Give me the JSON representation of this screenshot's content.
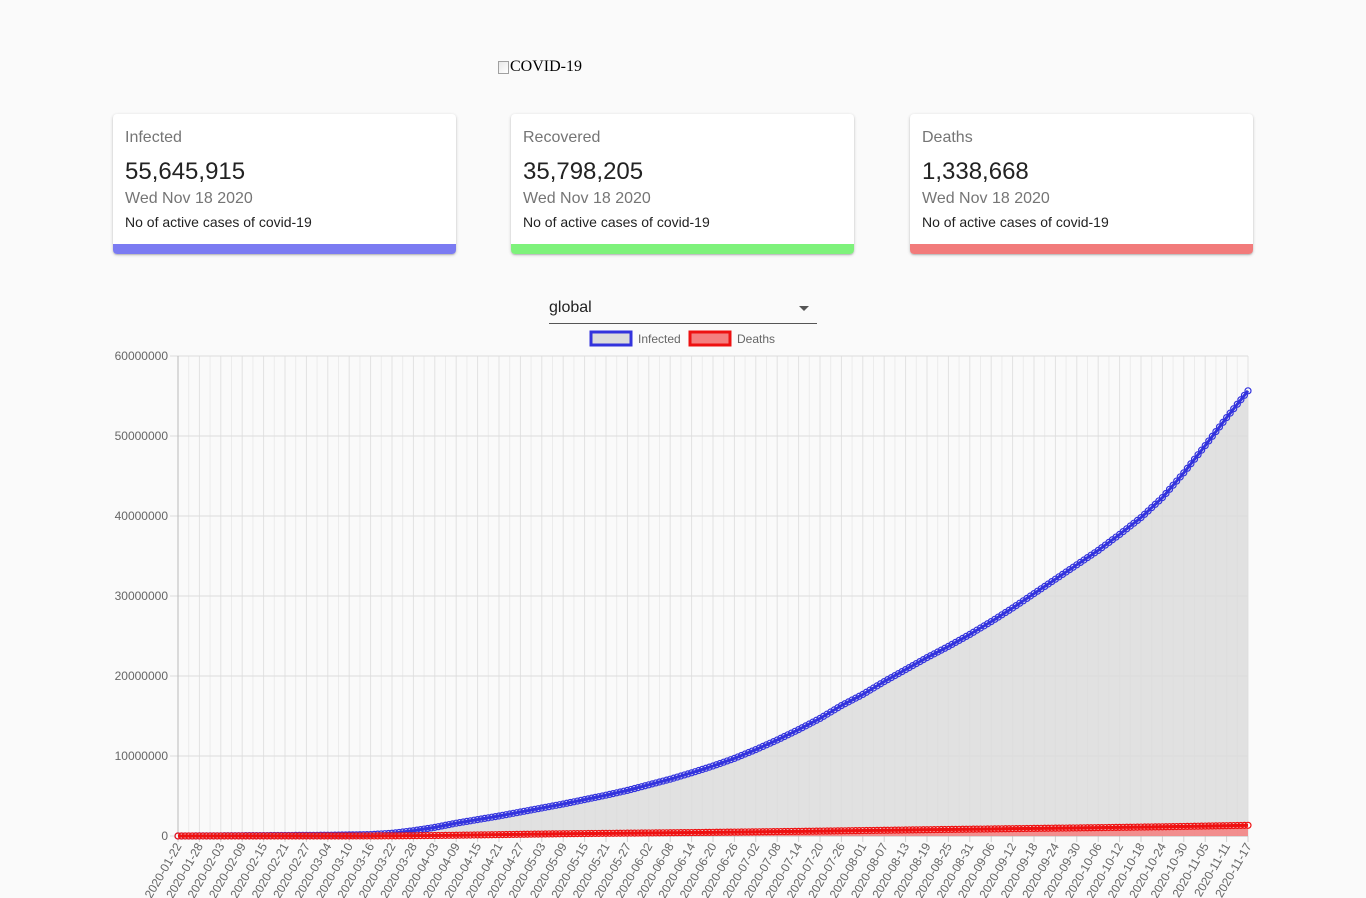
{
  "header": {
    "logo_alt": "COVID-19"
  },
  "cards": [
    {
      "label": "Infected",
      "value": "55,645,915",
      "date": "Wed Nov 18 2020",
      "desc": "No of active cases of covid-19",
      "color": "#7b7bf2"
    },
    {
      "label": "Recovered",
      "value": "35,798,205",
      "date": "Wed Nov 18 2020",
      "desc": "No of active cases of covid-19",
      "color": "#7ef27b"
    },
    {
      "label": "Deaths",
      "value": "1,338,668",
      "date": "Wed Nov 18 2020",
      "desc": "No of active cases of covid-19",
      "color": "#f27b7b"
    }
  ],
  "country_select": {
    "value": "global"
  },
  "chart_data": {
    "type": "line",
    "x_start": "2020-01-22",
    "x_end": "2020-11-17",
    "tick_labels": [
      "2020-01-22",
      "2020-01-28",
      "2020-02-03",
      "2020-02-09",
      "2020-02-15",
      "2020-02-21",
      "2020-02-27",
      "2020-03-04",
      "2020-03-10",
      "2020-03-16",
      "2020-03-22",
      "2020-03-28",
      "2020-04-03",
      "2020-04-09",
      "2020-04-15",
      "2020-04-21",
      "2020-04-27",
      "2020-05-03",
      "2020-05-09",
      "2020-05-15",
      "2020-05-21",
      "2020-05-27",
      "2020-06-02",
      "2020-06-08",
      "2020-06-14",
      "2020-06-20",
      "2020-06-26",
      "2020-07-02",
      "2020-07-08",
      "2020-07-14",
      "2020-07-20",
      "2020-07-26",
      "2020-08-01",
      "2020-08-07",
      "2020-08-13",
      "2020-08-19",
      "2020-08-25",
      "2020-08-31",
      "2020-09-06",
      "2020-09-12",
      "2020-09-18",
      "2020-09-24",
      "2020-09-30",
      "2020-10-06",
      "2020-10-12",
      "2020-10-18",
      "2020-10-24",
      "2020-10-30",
      "2020-11-05",
      "2020-11-11",
      "2020-11-17"
    ],
    "y_ticks": [
      0,
      10000000,
      20000000,
      30000000,
      40000000,
      50000000,
      60000000
    ],
    "ylim": [
      0,
      60000000
    ],
    "grid": true,
    "legend_position": "top",
    "series": [
      {
        "name": "Infected",
        "color": "#3333dd",
        "fill": "#dcdcdc",
        "x": [
          "2020-01-22",
          "2020-02-09",
          "2020-03-04",
          "2020-03-16",
          "2020-03-22",
          "2020-03-28",
          "2020-04-03",
          "2020-04-09",
          "2020-04-15",
          "2020-04-21",
          "2020-04-27",
          "2020-05-03",
          "2020-05-09",
          "2020-05-15",
          "2020-05-21",
          "2020-05-27",
          "2020-06-02",
          "2020-06-08",
          "2020-06-14",
          "2020-06-20",
          "2020-06-26",
          "2020-07-02",
          "2020-07-08",
          "2020-07-14",
          "2020-07-20",
          "2020-07-26",
          "2020-08-01",
          "2020-08-07",
          "2020-08-13",
          "2020-08-19",
          "2020-08-25",
          "2020-08-31",
          "2020-09-06",
          "2020-09-12",
          "2020-09-18",
          "2020-09-24",
          "2020-09-30",
          "2020-10-06",
          "2020-10-12",
          "2020-10-18",
          "2020-10-24",
          "2020-10-30",
          "2020-11-05",
          "2020-11-11",
          "2020-11-17"
        ],
        "values": [
          555,
          40000,
          95000,
          180000,
          340000,
          660000,
          1080000,
          1600000,
          2050000,
          2500000,
          3000000,
          3500000,
          4000000,
          4550000,
          5100000,
          5700000,
          6400000,
          7100000,
          7900000,
          8750000,
          9700000,
          10800000,
          12000000,
          13300000,
          14700000,
          16300000,
          17700000,
          19300000,
          20800000,
          22300000,
          23700000,
          25200000,
          26800000,
          28500000,
          30300000,
          32100000,
          33900000,
          35700000,
          37700000,
          39800000,
          42300000,
          45400000,
          48800000,
          52300000,
          55645915
        ]
      },
      {
        "name": "Deaths",
        "color": "#ee1111",
        "fill": "#f47f7f",
        "x": [
          "2020-01-22",
          "2020-03-10",
          "2020-03-22",
          "2020-04-03",
          "2020-04-15",
          "2020-04-27",
          "2020-05-09",
          "2020-05-21",
          "2020-06-02",
          "2020-06-14",
          "2020-06-26",
          "2020-07-08",
          "2020-07-20",
          "2020-08-01",
          "2020-08-13",
          "2020-08-25",
          "2020-09-06",
          "2020-09-18",
          "2020-09-30",
          "2020-10-12",
          "2020-10-24",
          "2020-11-05",
          "2020-11-17"
        ],
        "values": [
          17,
          4000,
          15000,
          60000,
          130000,
          210000,
          280000,
          330000,
          380000,
          430000,
          490000,
          550000,
          610000,
          680000,
          750000,
          820000,
          880000,
          950000,
          1010000,
          1080000,
          1150000,
          1240000,
          1338668
        ]
      }
    ]
  }
}
